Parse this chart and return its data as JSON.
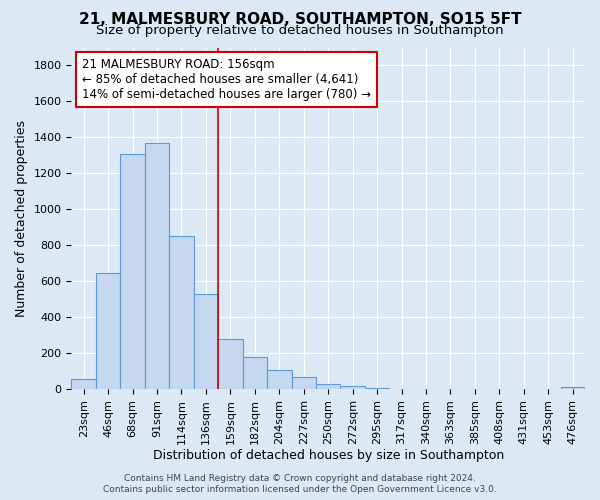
{
  "title": "21, MALMESBURY ROAD, SOUTHAMPTON, SO15 5FT",
  "subtitle": "Size of property relative to detached houses in Southampton",
  "xlabel": "Distribution of detached houses by size in Southampton",
  "ylabel": "Number of detached properties",
  "categories": [
    "23sqm",
    "46sqm",
    "68sqm",
    "91sqm",
    "114sqm",
    "136sqm",
    "159sqm",
    "182sqm",
    "204sqm",
    "227sqm",
    "250sqm",
    "272sqm",
    "295sqm",
    "317sqm",
    "340sqm",
    "363sqm",
    "385sqm",
    "408sqm",
    "431sqm",
    "453sqm",
    "476sqm"
  ],
  "values": [
    55,
    645,
    1310,
    1370,
    850,
    530,
    280,
    180,
    105,
    65,
    30,
    20,
    5,
    0,
    0,
    0,
    0,
    0,
    0,
    0,
    10
  ],
  "bar_fill_color": "#c5d8f0",
  "bar_edge_color": "#5b9bd5",
  "property_line_index": 6,
  "property_line_color": "#cc0000",
  "annotation_box_facecolor": "#ffffff",
  "annotation_box_edgecolor": "#cc0000",
  "annotation_line1": "21 MALMESBURY ROAD: 156sqm",
  "annotation_line2": "← 85% of detached houses are smaller (4,641)",
  "annotation_line3": "14% of semi-detached houses are larger (780) →",
  "ylim": [
    0,
    1900
  ],
  "yticks": [
    0,
    200,
    400,
    600,
    800,
    1000,
    1200,
    1400,
    1600,
    1800
  ],
  "bg_color": "#dce9f5",
  "grid_color": "#ffffff",
  "footer_line1": "Contains HM Land Registry data © Crown copyright and database right 2024.",
  "footer_line2": "Contains public sector information licensed under the Open Government Licence v3.0.",
  "title_fontsize": 11,
  "subtitle_fontsize": 9.5,
  "tick_fontsize": 8,
  "xlabel_fontsize": 9,
  "ylabel_fontsize": 9,
  "annotation_fontsize": 8.5,
  "footer_fontsize": 6.5
}
